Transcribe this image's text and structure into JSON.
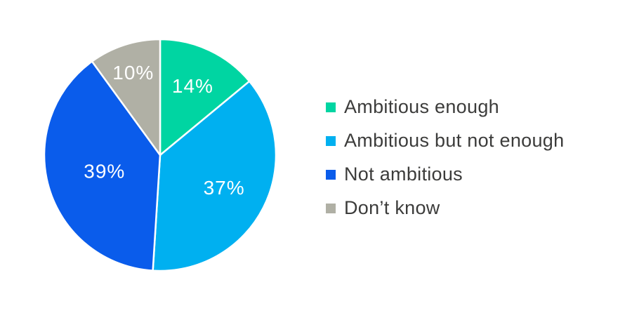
{
  "chart_data": {
    "type": "pie",
    "title": "",
    "direction": "clockwise",
    "start_angle_deg": 0,
    "legend_position": "right",
    "background": "#ffffff",
    "separator_color": "#ffffff",
    "slice_label_color": "#ffffff",
    "legend_text_color": "#3c3c3b",
    "series": [
      {
        "name": "Ambitious enough",
        "value": 14,
        "label": "14%",
        "color": "#00d5a2"
      },
      {
        "name": "Ambitious but not enough",
        "value": 37,
        "label": "37%",
        "color": "#00b0f0"
      },
      {
        "name": "Not ambitious",
        "value": 39,
        "label": "39%",
        "color": "#0a5ceb"
      },
      {
        "name": "Don’t know",
        "value": 10,
        "label": "10%",
        "color": "#b0b0a5"
      }
    ]
  }
}
